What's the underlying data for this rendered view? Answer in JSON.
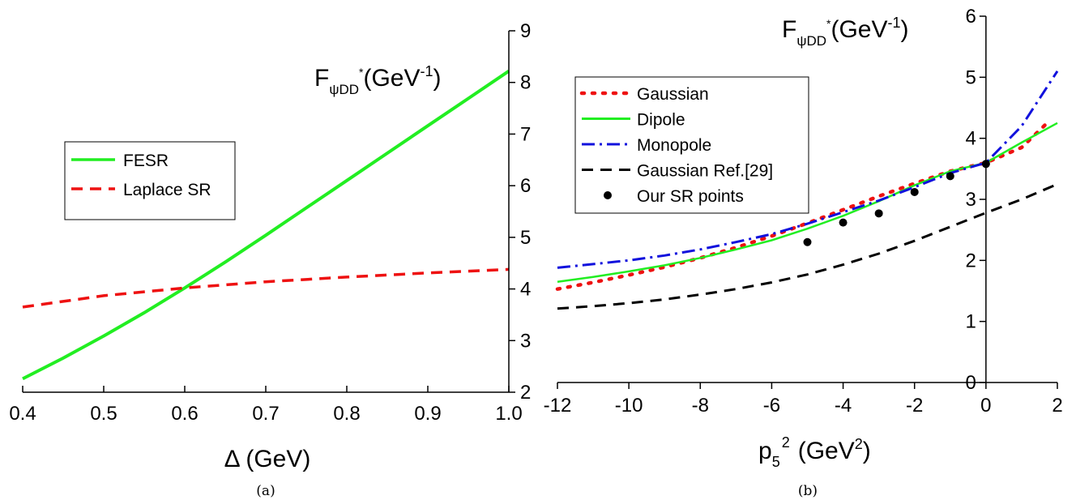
{
  "chart_data": [
    {
      "type": "line",
      "caption": "(a)",
      "xlabel": "Δ (GeV)",
      "ylabel": {
        "base": "F",
        "sub": "ψDD",
        "sup_star": "*",
        "units": "(GeV",
        "units_sup": "-1",
        "close": ")"
      },
      "xlim": [
        0.4,
        1.0
      ],
      "ylim": [
        2,
        9
      ],
      "xticks": [
        "0.4",
        "0.5",
        "0.6",
        "0.7",
        "0.8",
        "0.9",
        "1.0"
      ],
      "yticks": [
        "2",
        "3",
        "4",
        "5",
        "6",
        "7",
        "8",
        "9"
      ],
      "legend_position": "upper-left",
      "series": [
        {
          "name": "FESR",
          "color": "#22ee22",
          "style": "solid",
          "x": [
            0.4,
            0.45,
            0.5,
            0.55,
            0.6,
            0.65,
            0.7,
            0.75,
            0.8,
            0.85,
            0.9,
            0.95,
            1.0
          ],
          "y": [
            2.26,
            2.66,
            3.09,
            3.54,
            4.02,
            4.52,
            5.04,
            5.57,
            6.1,
            6.63,
            7.16,
            7.69,
            8.22
          ]
        },
        {
          "name": "Laplace SR",
          "color": "#ee1111",
          "style": "dashed",
          "x": [
            0.4,
            0.5,
            0.6,
            0.7,
            0.8,
            0.9,
            1.0
          ],
          "y": [
            3.65,
            3.87,
            4.02,
            4.14,
            4.23,
            4.31,
            4.38
          ]
        }
      ]
    },
    {
      "type": "line",
      "caption": "(b)",
      "xlabel": {
        "base": "p",
        "sub": "5",
        "sup": "2",
        "units": "(GeV",
        "units_sup": "2",
        "close": ")"
      },
      "ylabel": {
        "base": "F",
        "sub": "ψDD",
        "sup_star": "*",
        "units": "(GeV",
        "units_sup": "-1",
        "close": ")"
      },
      "xlim": [
        -12,
        2
      ],
      "ylim": [
        0,
        6
      ],
      "xticks": [
        "-12",
        "-10",
        "-8",
        "-6",
        "-4",
        "-2",
        "0",
        "2"
      ],
      "yticks": [
        "0",
        "1",
        "2",
        "3",
        "4",
        "5",
        "6"
      ],
      "legend_position": "upper-left",
      "series": [
        {
          "name": "Gaussian",
          "color": "#ee1111",
          "style": "dotted",
          "x": [
            -12,
            -11,
            -10,
            -9,
            -8,
            -7,
            -6,
            -5,
            -4,
            -3,
            -2,
            -1,
            0,
            1,
            1.8
          ],
          "y": [
            1.53,
            1.64,
            1.76,
            1.89,
            2.04,
            2.21,
            2.4,
            2.61,
            2.83,
            3.05,
            3.26,
            3.46,
            3.6,
            3.85,
            4.3
          ]
        },
        {
          "name": "Dipole",
          "color": "#22ee22",
          "style": "solid",
          "x": [
            -12,
            -11,
            -10,
            -9,
            -8,
            -7,
            -6,
            -5,
            -4,
            -3,
            -2,
            -1,
            0,
            1,
            2
          ],
          "y": [
            1.65,
            1.73,
            1.82,
            1.92,
            2.04,
            2.18,
            2.33,
            2.52,
            2.73,
            2.97,
            3.23,
            3.46,
            3.6,
            3.93,
            4.25
          ]
        },
        {
          "name": "Monopole",
          "color": "#1111dd",
          "style": "dashdot",
          "x": [
            -12,
            -11,
            -10,
            -9,
            -8,
            -7,
            -6,
            -5,
            -4,
            -3,
            -2,
            -1,
            0,
            1,
            2
          ],
          "y": [
            1.88,
            1.94,
            2.0,
            2.08,
            2.18,
            2.3,
            2.43,
            2.6,
            2.79,
            2.98,
            3.2,
            3.43,
            3.6,
            4.2,
            5.1
          ]
        },
        {
          "name": "Gaussian Ref.[29]",
          "color": "#000000",
          "style": "dashed",
          "x": [
            -12,
            -11,
            -10,
            -9,
            -8,
            -7,
            -6,
            -5,
            -4,
            -3,
            -2,
            -1,
            0,
            1,
            2
          ],
          "y": [
            1.21,
            1.25,
            1.3,
            1.36,
            1.44,
            1.53,
            1.64,
            1.77,
            1.93,
            2.11,
            2.32,
            2.55,
            2.78,
            3.0,
            3.25
          ]
        },
        {
          "name": "Our SR points",
          "color": "#000000",
          "style": "markers",
          "x": [
            -5,
            -4,
            -3,
            -2,
            -1,
            0
          ],
          "y": [
            2.3,
            2.62,
            2.77,
            3.12,
            3.38,
            3.58
          ]
        }
      ]
    }
  ]
}
